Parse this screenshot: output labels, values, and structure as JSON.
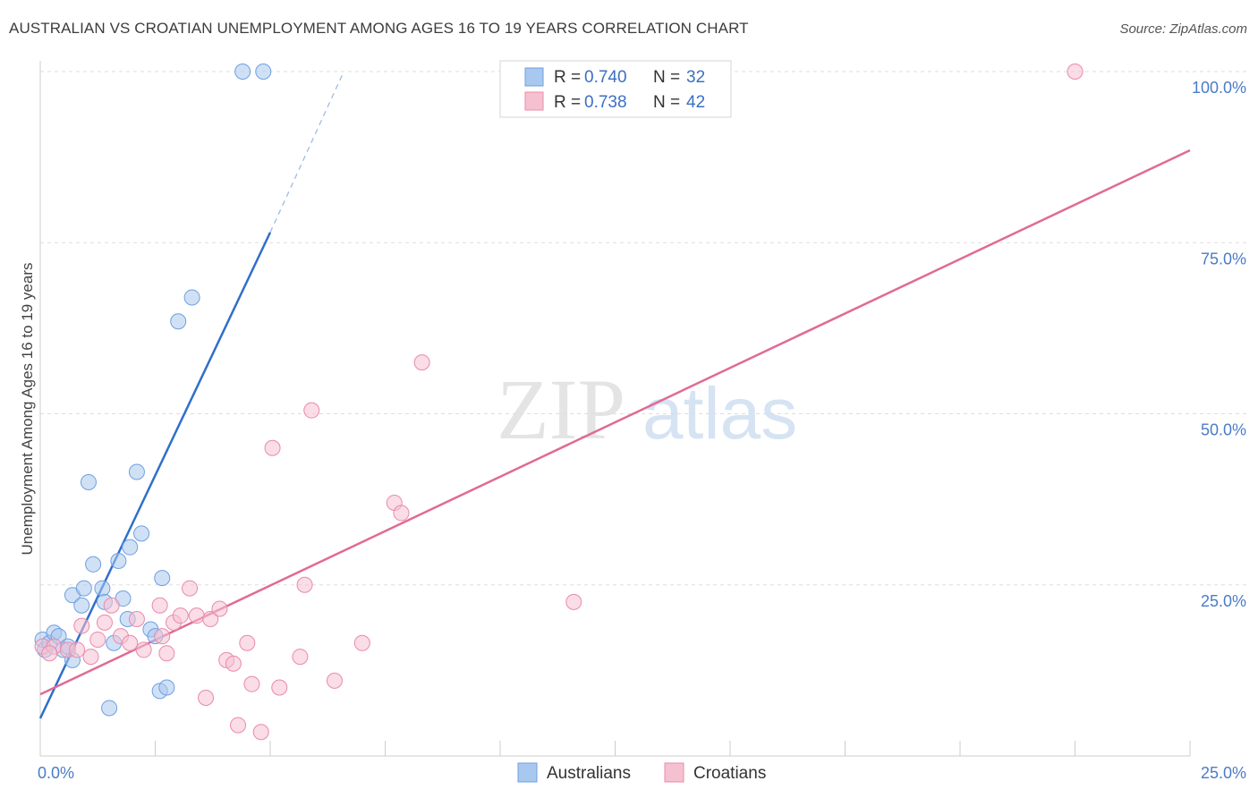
{
  "title": "AUSTRALIAN VS CROATIAN UNEMPLOYMENT AMONG AGES 16 TO 19 YEARS CORRELATION CHART",
  "source": "Source: ZipAtlas.com",
  "watermark": {
    "zip": "ZIP",
    "atlas": "atlas"
  },
  "colors": {
    "blue_fill": "#a9c8ef",
    "blue_stroke": "#6f9fe0",
    "blue_line": "#2f6fcb",
    "pink_fill": "#f5c1d1",
    "pink_stroke": "#e98aab",
    "pink_line": "#e06a96",
    "tick_text": "#4a7cc8",
    "grid": "#dddddd"
  },
  "legend": {
    "r_label": "R =",
    "n_label": "N =",
    "rows": [
      {
        "series": "Australians",
        "r": "0.740",
        "n": "32"
      },
      {
        "series": "Croatians",
        "r": "0.738",
        "n": "42"
      }
    ]
  },
  "chart_data": {
    "type": "scatter",
    "title": "AUSTRALIAN VS CROATIAN UNEMPLOYMENT AMONG AGES 16 TO 19 YEARS CORRELATION CHART",
    "xlabel": "",
    "ylabel": "Unemployment Among Ages 16 to 19 years",
    "xlim": [
      0,
      25
    ],
    "ylim": [
      0,
      100
    ],
    "x_ticks_labels": [
      "0.0%",
      "25.0%"
    ],
    "y_ticks": [
      25,
      50,
      75,
      100
    ],
    "y_ticks_labels": [
      "25.0%",
      "50.0%",
      "75.0%",
      "100.0%"
    ],
    "legend_position": "bottom-center",
    "series": [
      {
        "name": "Australians",
        "points": [
          [
            0.05,
            17.0
          ],
          [
            0.1,
            15.5
          ],
          [
            0.2,
            16.5
          ],
          [
            0.3,
            18.0
          ],
          [
            0.4,
            17.5
          ],
          [
            0.5,
            15.5
          ],
          [
            0.6,
            16.0
          ],
          [
            0.7,
            14.0
          ],
          [
            0.7,
            23.5
          ],
          [
            0.9,
            22.0
          ],
          [
            0.95,
            24.5
          ],
          [
            1.05,
            40.0
          ],
          [
            1.15,
            28.0
          ],
          [
            1.35,
            24.5
          ],
          [
            1.4,
            22.5
          ],
          [
            1.5,
            7.0
          ],
          [
            1.6,
            16.5
          ],
          [
            1.7,
            28.5
          ],
          [
            1.8,
            23.0
          ],
          [
            1.9,
            20.0
          ],
          [
            1.95,
            30.5
          ],
          [
            2.1,
            41.5
          ],
          [
            2.2,
            32.5
          ],
          [
            2.4,
            18.5
          ],
          [
            2.5,
            17.5
          ],
          [
            2.6,
            9.5
          ],
          [
            2.65,
            26.0
          ],
          [
            2.75,
            10.0
          ],
          [
            3.0,
            63.5
          ],
          [
            3.3,
            67.0
          ],
          [
            4.4,
            100.0
          ],
          [
            4.85,
            100.0
          ]
        ],
        "trend": {
          "x0": 0,
          "y0": 5.5,
          "x1": 5.0,
          "y1": 76.5,
          "dashed_to": [
            6.6,
            100
          ]
        }
      },
      {
        "name": "Croatians",
        "points": [
          [
            0.05,
            16.0
          ],
          [
            0.3,
            16.0
          ],
          [
            0.6,
            15.5
          ],
          [
            0.8,
            15.5
          ],
          [
            0.9,
            19.0
          ],
          [
            1.1,
            14.5
          ],
          [
            1.25,
            17.0
          ],
          [
            1.4,
            19.5
          ],
          [
            1.55,
            22.0
          ],
          [
            1.75,
            17.5
          ],
          [
            1.95,
            16.5
          ],
          [
            2.1,
            20.0
          ],
          [
            2.25,
            15.5
          ],
          [
            2.6,
            22.0
          ],
          [
            2.65,
            17.5
          ],
          [
            2.75,
            15.0
          ],
          [
            2.9,
            19.5
          ],
          [
            3.05,
            20.5
          ],
          [
            3.25,
            24.5
          ],
          [
            3.4,
            20.5
          ],
          [
            3.6,
            8.5
          ],
          [
            3.7,
            20.0
          ],
          [
            3.9,
            21.5
          ],
          [
            4.05,
            14.0
          ],
          [
            4.2,
            13.5
          ],
          [
            4.3,
            4.5
          ],
          [
            4.5,
            16.5
          ],
          [
            4.6,
            10.5
          ],
          [
            4.8,
            3.5
          ],
          [
            5.05,
            45.0
          ],
          [
            5.2,
            10.0
          ],
          [
            5.65,
            14.5
          ],
          [
            5.75,
            25.0
          ],
          [
            5.9,
            50.5
          ],
          [
            6.4,
            11.0
          ],
          [
            7.0,
            16.5
          ],
          [
            7.7,
            37.0
          ],
          [
            7.85,
            35.5
          ],
          [
            8.3,
            57.5
          ],
          [
            11.6,
            22.5
          ],
          [
            22.5,
            100.0
          ],
          [
            0.2,
            15.0
          ]
        ],
        "trend": {
          "x0": 0,
          "y0": 9.0,
          "x1": 25.0,
          "y1": 88.5
        }
      }
    ]
  }
}
